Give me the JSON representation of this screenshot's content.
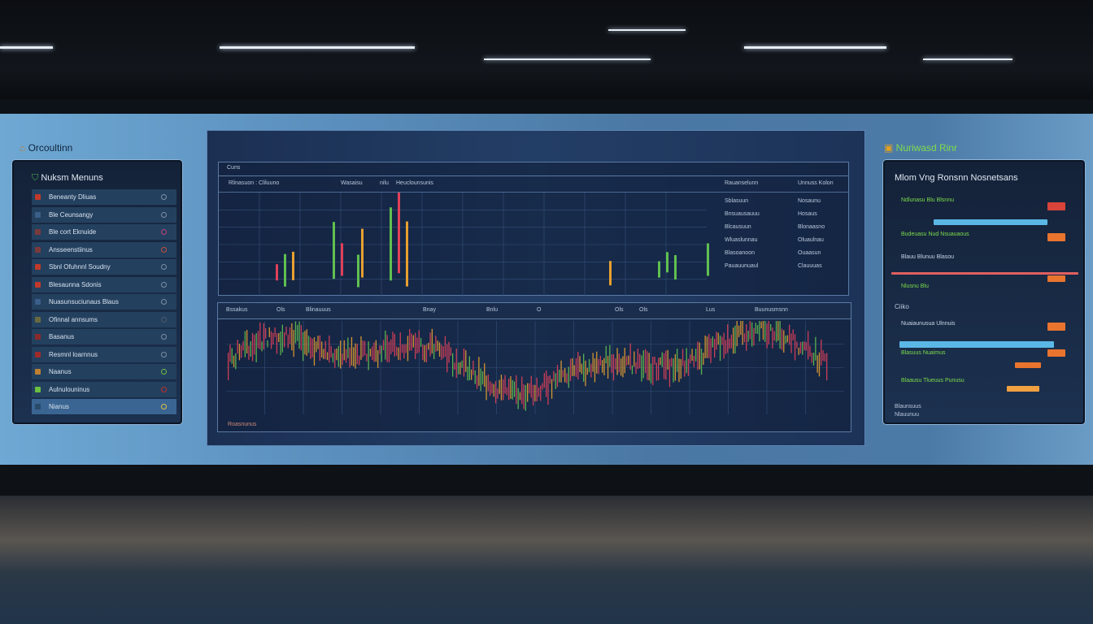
{
  "left_panel": {
    "wall_label": "Orcoultinn",
    "title": "Nuksm Menuns",
    "items": [
      {
        "label": "Beneanty Dliuas",
        "icon": "#c0392b",
        "status": "#7d8ea3"
      },
      {
        "label": "Ble Ceunsangy",
        "icon": "#3a5f8a",
        "status": "#7d8ea3"
      },
      {
        "label": "Ble cort Eknuide",
        "icon": "#7a3a3a",
        "status": "#c0407a"
      },
      {
        "label": "Ansseenstiinus",
        "icon": "#7a3a3a",
        "status": "#c0503a"
      },
      {
        "label": "Sbnl Ofuhnnl Soudny",
        "icon": "#c0392b",
        "status": "#7d8ea3"
      },
      {
        "label": "Blesaunna Sdonis",
        "icon": "#c0392b",
        "status": "#7d8ea3"
      },
      {
        "label": "Nuasunsuciunaus Blaus",
        "icon": "#3a5f8a",
        "status": "#7d8ea3"
      },
      {
        "label": "Ofinnal annsums",
        "icon": "#6a6a40",
        "status": "#4a5a6a"
      },
      {
        "label": "Basanus",
        "icon": "#8a2a2a",
        "status": "#7d8ea3"
      },
      {
        "label": "Resmnl loarnnus",
        "icon": "#a02a2a",
        "status": "#7d8ea3"
      },
      {
        "label": "Naanus",
        "icon": "#c08030",
        "status": "#6ac040"
      },
      {
        "label": "Aulnulouninus",
        "icon": "#6ac040",
        "status": "#c03030"
      },
      {
        "label": "Nianus",
        "icon": "#2a4a6a",
        "status": "#e0c040"
      }
    ]
  },
  "center": {
    "top_bar": "Cuns",
    "headers": [
      "Rlinasuon : Cliluuno",
      "Wasaisu",
      "nilu",
      "Heuclounsunis",
      "Rauanselunn",
      "Unnuss Kolon"
    ],
    "lists": [
      [
        "Sblasuun",
        "Bnsuausauuu",
        "Blcausuun",
        "Wluaslunnau",
        "Blasoanoon",
        "Pauauunuaul"
      ],
      [
        "Nosaunu",
        "Hosaus",
        "Blonaasno",
        "Oluaulnau",
        "Ouaasun",
        "Clauuuas"
      ]
    ],
    "toolbar": [
      "Bssakus",
      "Ols",
      "Blinauuus",
      "Bnay",
      "Bnlu",
      "O",
      "Ols",
      "Ols",
      "Lus",
      "Buunusmsnn"
    ],
    "footer": "Roasnunus"
  },
  "right_panel": {
    "wall_label": "Nuriwasd Rinr",
    "title": "Mlom Vng Ronsnn Nosnetsans",
    "section": "Ciiko",
    "rows": [
      "Ndlunasu Blu Blsnnu",
      "Budeuasu Nud Nsuauaous",
      "Blauu Blunuu Blasou",
      "Nlusnu Blu",
      "Nuaiaunusua Ulnnuis",
      "Blasuus Nuaimus",
      "Blaausu Tlueuus Punusu"
    ],
    "footer": [
      "Blaunsuus",
      "Nlauunuu"
    ],
    "colors": {
      "red": "#d9443a",
      "orange": "#e8742e",
      "cyan": "#5bb8e6",
      "green": "#7ddc4a"
    }
  }
}
